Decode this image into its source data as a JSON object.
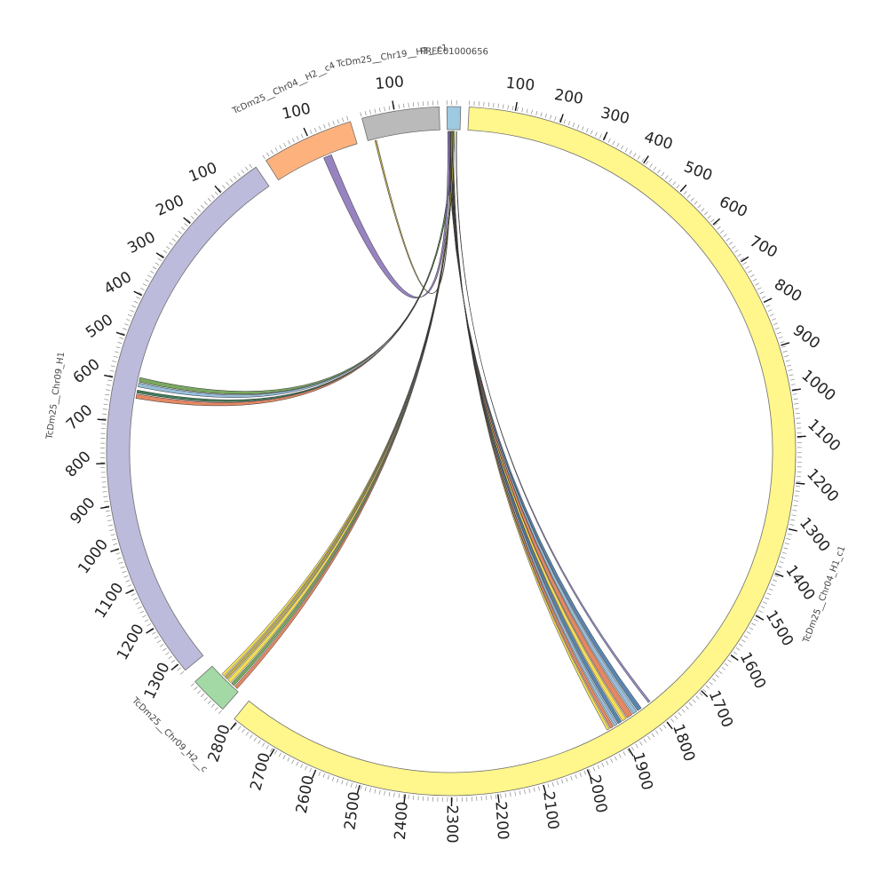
{
  "segments": [
    {
      "id": "chr04_h1_c1",
      "label": "TcDm25__Chr04_H1_c1",
      "color": "#fff68c",
      "ticks": [
        "100",
        "200",
        "300",
        "400",
        "500",
        "600",
        "700",
        "800",
        "900",
        "1000",
        "1100",
        "1200",
        "1300",
        "1400",
        "1500",
        "1600",
        "1700",
        "1800",
        "1900",
        "2000",
        "2100",
        "2200",
        "2300",
        "2400",
        "2500",
        "2600",
        "2700",
        "2800"
      ]
    },
    {
      "id": "chr09_h2",
      "label": "TcDm25__Chr09_H2__c",
      "color": "#a3d9a5",
      "ticks": []
    },
    {
      "id": "chr09_h1",
      "label": "TcDm25__Chr09_H1",
      "color": "#bdbbdc",
      "ticks": [
        "100",
        "200",
        "300",
        "400",
        "500",
        "600",
        "700",
        "800",
        "900",
        "1000",
        "1100",
        "1200",
        "1300"
      ]
    },
    {
      "id": "chr04_h2",
      "label": "TcDm25__Chr04__H2__c4",
      "color": "#fdb27e",
      "ticks": [
        "100"
      ]
    },
    {
      "id": "chr19_h2",
      "label": "TcDm25__Chr19__H2__c1",
      "color": "#bababa",
      "ticks": [
        "100"
      ]
    },
    {
      "id": "ptg",
      "label": "PRFC01000656",
      "color": "#9ecae1",
      "ticks": []
    }
  ],
  "link_colors": [
    "#4679a8",
    "#8bb6d6",
    "#e07b53",
    "#f2d944",
    "#2e6f45",
    "#6a9d50",
    "#9a86c4",
    "#b8a33e",
    "#3c5a8e",
    "#1f1f1f"
  ]
}
